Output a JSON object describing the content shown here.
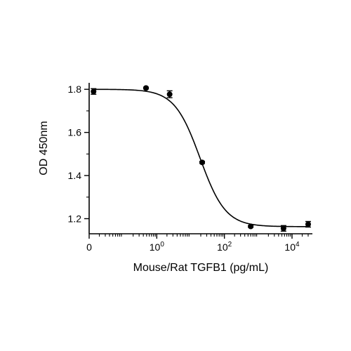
{
  "chart_data": {
    "type": "scatter",
    "xlabel": "Mouse/Rat TGFB1 (pg/mL)",
    "ylabel": "OD 450nm",
    "x_scale": "log",
    "xlim": [
      0.01,
      40000
    ],
    "ylim": [
      1.13,
      1.83
    ],
    "x_ticks": [
      {
        "value": 0.01,
        "label": "0"
      },
      {
        "value": 1,
        "base": "10",
        "exp": "0"
      },
      {
        "value": 100,
        "base": "10",
        "exp": "2"
      },
      {
        "value": 10000,
        "base": "10",
        "exp": "4"
      }
    ],
    "y_ticks": [
      {
        "value": 1.2,
        "label": "1.2"
      },
      {
        "value": 1.4,
        "label": "1.4"
      },
      {
        "value": 1.6,
        "label": "1.6"
      },
      {
        "value": 1.8,
        "label": "1.8"
      }
    ],
    "points": [
      {
        "x": 0.0135,
        "y": 1.79,
        "err": 0.013
      },
      {
        "x": 0.48,
        "y": 1.806,
        "err": 0.004
      },
      {
        "x": 2.4,
        "y": 1.777,
        "err": 0.016
      },
      {
        "x": 22,
        "y": 1.461,
        "err": 0.005
      },
      {
        "x": 600,
        "y": 1.164,
        "err": 0.004
      },
      {
        "x": 5600,
        "y": 1.155,
        "err": 0.013
      },
      {
        "x": 30000,
        "y": 1.174,
        "err": 0.013
      }
    ],
    "fit": {
      "top": 1.8,
      "bottom": 1.163,
      "ec50": 19,
      "hill": 1.15
    },
    "grid": false,
    "legend": "none"
  }
}
